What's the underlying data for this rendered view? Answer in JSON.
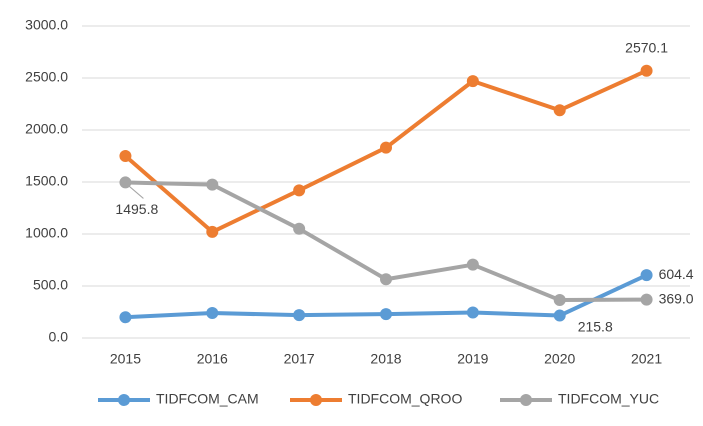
{
  "chart_data": {
    "type": "line",
    "categories": [
      "2015",
      "2016",
      "2017",
      "2018",
      "2019",
      "2020",
      "2021"
    ],
    "series": [
      {
        "name": "TIDFCOM_CAM",
        "color": "#5b9bd5",
        "values": [
          200,
          240,
          220,
          230,
          245,
          215.8,
          604.4
        ],
        "value_labels": [
          null,
          null,
          null,
          null,
          null,
          "215.8",
          "604.4"
        ]
      },
      {
        "name": "TIDFCOM_QROO",
        "color": "#ed7d31",
        "values": [
          1750,
          1020,
          1420,
          1830,
          2470,
          2190,
          2570.1
        ],
        "value_labels": [
          null,
          null,
          null,
          null,
          null,
          null,
          "2570.1"
        ]
      },
      {
        "name": "TIDFCOM_YUC",
        "color": "#a5a5a5",
        "values": [
          1495.8,
          1475,
          1050,
          565,
          705,
          365,
          369.0
        ],
        "value_labels": [
          "1495.8",
          null,
          null,
          null,
          null,
          null,
          "369.0"
        ]
      }
    ],
    "ylim": [
      0,
      3000
    ],
    "yticks": [
      {
        "value": 0,
        "label": "0.0"
      },
      {
        "value": 500,
        "label": "500.0"
      },
      {
        "value": 1000,
        "label": "1000.0"
      },
      {
        "value": 1500,
        "label": "1500.0"
      },
      {
        "value": 2000,
        "label": "2000.0"
      },
      {
        "value": 2500,
        "label": "2500.0"
      },
      {
        "value": 3000,
        "label": "3000.0"
      }
    ],
    "grid": true,
    "legend": "bottom"
  }
}
